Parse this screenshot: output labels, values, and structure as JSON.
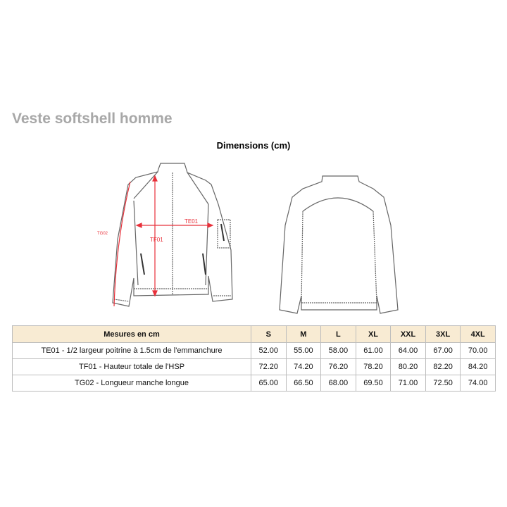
{
  "title": "Veste softshell homme",
  "subtitle": "Dimensions (cm)",
  "diagram_labels": {
    "te01": "TE01",
    "tf01": "TF01",
    "tg02": "TG02"
  },
  "colors": {
    "accent": "#e8303a",
    "header_bg": "#f8ebd3",
    "title": "#a8a8a8"
  },
  "table": {
    "headers": [
      "Mesures en cm",
      "S",
      "M",
      "L",
      "XL",
      "XXL",
      "3XL",
      "4XL"
    ],
    "rows": [
      [
        "TE01 - 1/2 largeur poitrine à 1.5cm de l'emmanchure",
        "52.00",
        "55.00",
        "58.00",
        "61.00",
        "64.00",
        "67.00",
        "70.00"
      ],
      [
        "TF01 - Hauteur totale de l'HSP",
        "72.20",
        "74.20",
        "76.20",
        "78.20",
        "80.20",
        "82.20",
        "84.20"
      ],
      [
        "TG02 - Longueur manche longue",
        "65.00",
        "66.50",
        "68.00",
        "69.50",
        "71.00",
        "72.50",
        "74.00"
      ]
    ]
  }
}
